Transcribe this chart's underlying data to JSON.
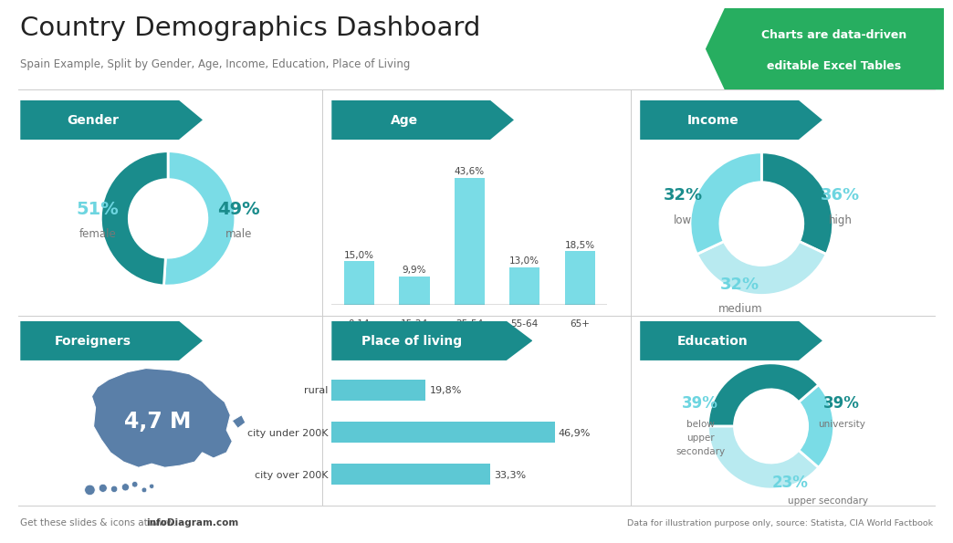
{
  "title": "Country Demographics Dashboard",
  "subtitle": "Spain Example, Split by Gender, Age, Income, Education, Place of Living",
  "banner_color": "#27ae60",
  "teal_dark": "#1a8c8c",
  "teal_light": "#6dd5e0",
  "teal_medium": "#3ab0b8",
  "blue_gray": "#5a7fa8",
  "gender": {
    "female": 51,
    "male": 49,
    "female_color": "#7adce6",
    "male_color": "#1a8c8c",
    "label": "Gender"
  },
  "age": {
    "categories": [
      "0-14",
      "15-24",
      "25-54",
      "55-64",
      "65+"
    ],
    "values": [
      15.0,
      9.9,
      43.6,
      13.0,
      18.5
    ],
    "bar_color": "#7adce6",
    "label": "Age"
  },
  "income": {
    "low": 32,
    "medium": 32,
    "high": 36,
    "low_color": "#1a8c8c",
    "medium_color": "#7adce6",
    "high_color": "#b8eaf0",
    "label": "Income"
  },
  "foreigners": {
    "value": "4,7 M",
    "label": "Foreigners",
    "map_color": "#5a7fa8"
  },
  "place_of_living": {
    "categories": [
      "rural",
      "city under 200K",
      "city over 200K"
    ],
    "values": [
      19.8,
      46.9,
      33.3
    ],
    "bar_color": "#5dc8d4",
    "label": "Place of living"
  },
  "education": {
    "university": 39,
    "upper_secondary": 23,
    "below_upper_secondary": 39,
    "univ_color": "#1a8c8c",
    "upper_sec_color": "#7adce6",
    "below_color": "#b8eaf0",
    "label": "Education"
  },
  "footer_left": "Get these slides & icons at www.",
  "footer_left_bold": "infoDiagram.com",
  "footer_right": "Data for illustration purpose only, source: Statista, CIA World Factbook",
  "bg_color": "#ffffff",
  "text_dark": "#444444",
  "text_gray": "#777777"
}
